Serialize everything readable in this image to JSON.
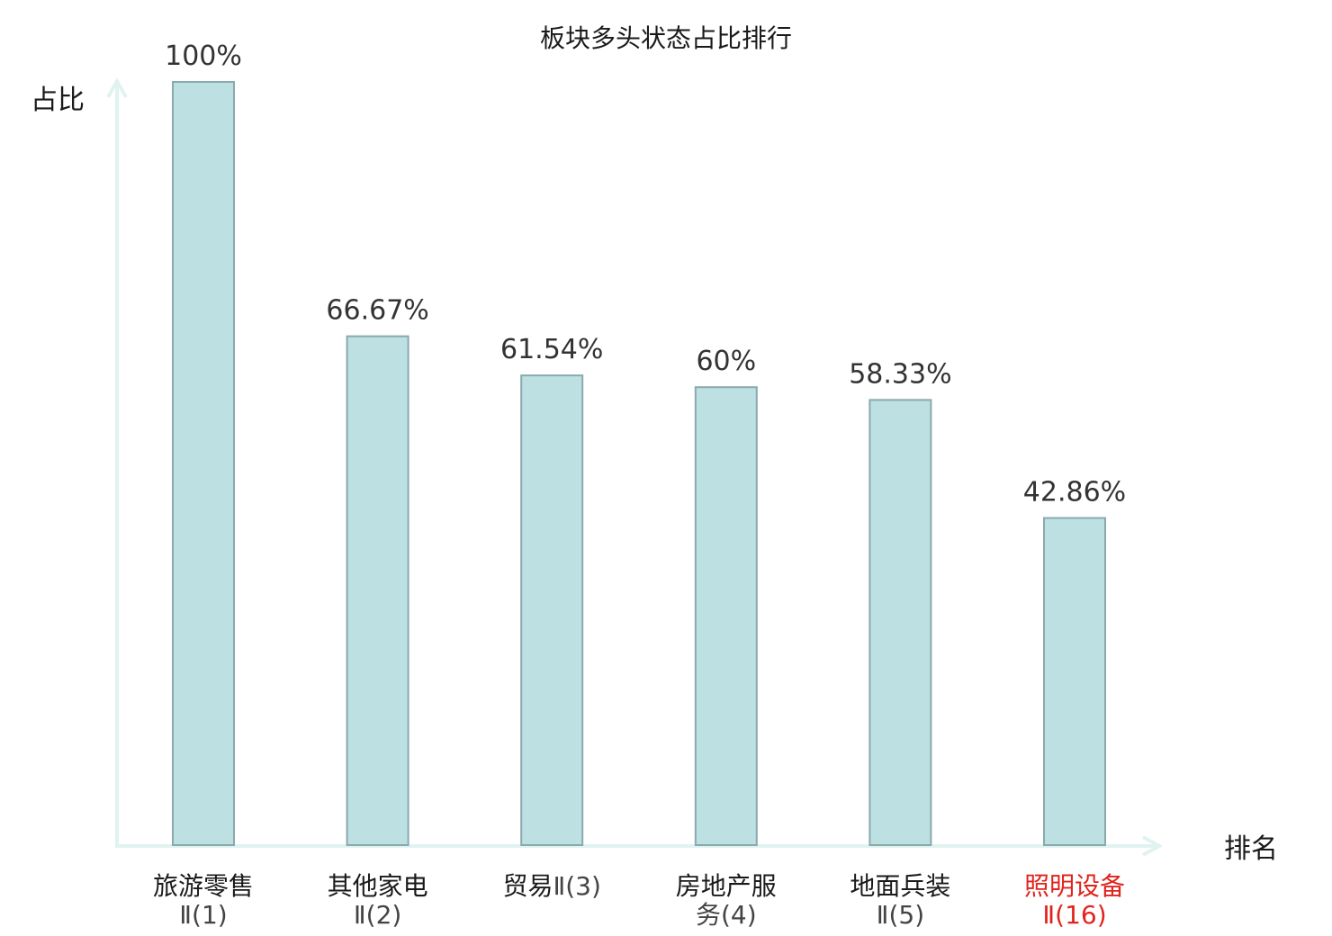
{
  "chart_data": {
    "type": "bar",
    "title": "板块多头状态占比排行",
    "xlabel": "排名",
    "ylabel": "占比",
    "ylim": [
      0,
      100
    ],
    "grid": false,
    "categories": [
      {
        "name": "旅游零售",
        "rank": "Ⅱ(1)",
        "highlight": false
      },
      {
        "name": "其他家电",
        "rank": "Ⅱ(2)",
        "highlight": false
      },
      {
        "name": "贸易",
        "rank": "Ⅱ(3)",
        "highlight": false
      },
      {
        "name": "房地产服",
        "rank": "务(4)",
        "highlight": false
      },
      {
        "name": "地面兵装",
        "rank": "Ⅱ(5)",
        "highlight": false
      },
      {
        "name": "照明设备",
        "rank": "Ⅱ(16)",
        "highlight": true
      }
    ],
    "values": [
      100,
      66.67,
      61.54,
      60,
      58.33,
      42.86
    ],
    "value_labels": [
      "100%",
      "66.67%",
      "61.54%",
      "60%",
      "58.33%",
      "42.86%"
    ],
    "colors": {
      "bar_fill": "#bde0e3",
      "bar_stroke": "#8aa9ad",
      "axis": "#e0f3f1",
      "highlight_text": "#e0231c"
    }
  }
}
